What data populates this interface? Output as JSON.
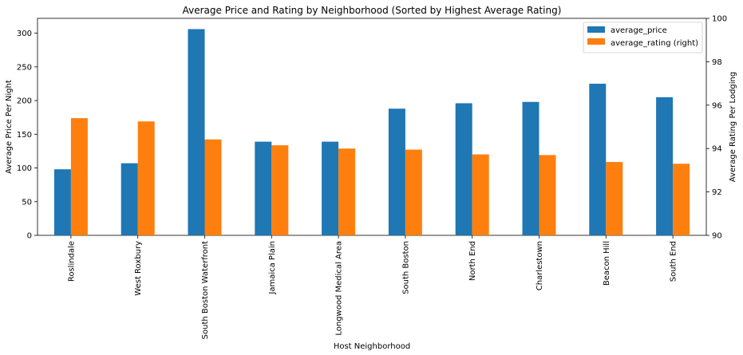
{
  "chart_data": {
    "type": "bar",
    "title": "Average Price and Rating by Neighborhood (Sorted by Highest Average Rating)",
    "xlabel": "Host Neighborhood",
    "ylabel": "Average Price Per Night",
    "y2label": "Average Rating Per Lodging",
    "categories": [
      "Roslindale",
      "West Roxbury",
      "South Boston Waterfront",
      "Jamaica Plain",
      "Longwood Medical Area",
      "South Boston",
      "North End",
      "Charlestown",
      "Beacon Hill",
      "South End"
    ],
    "series": [
      {
        "name": "average_price",
        "axis": "left",
        "color": "#1f77b4",
        "values": [
          98,
          107,
          306,
          139,
          139,
          188,
          196,
          198,
          225,
          205
        ]
      },
      {
        "name": "average_rating (right)",
        "axis": "right",
        "color": "#ff7f0e",
        "values": [
          95.4,
          95.25,
          94.42,
          94.15,
          94.0,
          93.95,
          93.73,
          93.7,
          93.38,
          93.3
        ]
      }
    ],
    "ylim": [
      0,
      322
    ],
    "y2lim": [
      90,
      100
    ],
    "yticks": [
      0,
      50,
      100,
      150,
      200,
      250,
      300
    ],
    "y2ticks": [
      90,
      92,
      94,
      96,
      98,
      100
    ],
    "legend_position": "top-right",
    "grid": false
  }
}
